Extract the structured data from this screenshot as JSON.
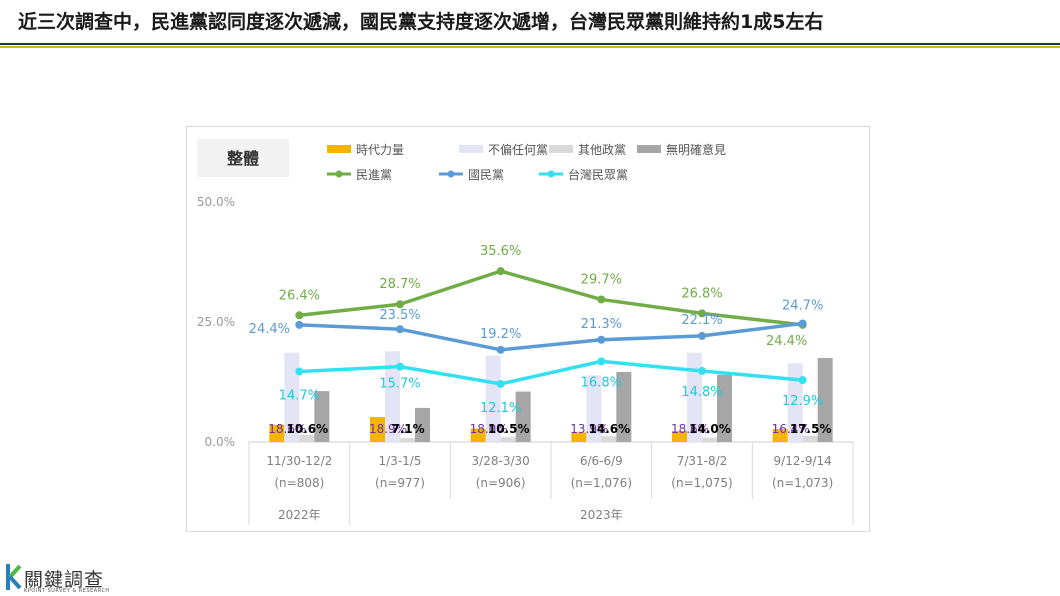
{
  "page": {
    "title": "近三次調查中，民進黨認同度逐次遞減，國民黨支持度逐次遞增，台灣民眾黨則維持約1成5左右"
  },
  "logo": {
    "name": "關鍵調查",
    "subtitle": "KPOINT SURVEY & RESEARCH"
  },
  "colors": {
    "時代力量": "#f5b400",
    "不偏任何黨": "#e4e4f7",
    "其他政黨": "#d9d9d9",
    "無明確意見": "#a6a6a6",
    "民進黨": "#70ad47",
    "國民黨": "#5b9bd5",
    "台灣民眾黨": "#33e0f0"
  },
  "chart_data": {
    "type": "bar+line",
    "panel_label": "整體",
    "categories": [
      "11/30-12/2",
      "1/3-1/5",
      "3/28-3/30",
      "6/6-6/9",
      "7/31-8/2",
      "9/12-9/14"
    ],
    "sample_sizes": [
      "(n=808)",
      "(n=977)",
      "(n=906)",
      "(n=1,076)",
      "(n=1,075)",
      "(n=1,073)"
    ],
    "year_groups": [
      {
        "label": "2022年",
        "span": [
          0,
          0
        ]
      },
      {
        "label": "2023年",
        "span": [
          1,
          5
        ]
      }
    ],
    "y_ticks": [
      "0.0%",
      "25.0%",
      "50.0%"
    ],
    "ylim": [
      0,
      50
    ],
    "bar_series": [
      {
        "name": "時代力量",
        "values": [
          3.6,
          5.2,
          2.8,
          2.0,
          2.3,
          2.7
        ]
      },
      {
        "name": "不偏任何黨",
        "values": [
          18.6,
          18.9,
          18.0,
          13.9,
          18.6,
          16.4
        ],
        "labels": [
          "18.6%",
          "18.9%",
          "18.0%",
          "13.9%",
          "18.6%",
          "16.4%"
        ]
      },
      {
        "name": "其他政黨",
        "values": [
          1.5,
          0.8,
          1.0,
          1.2,
          0.9,
          1.3
        ]
      },
      {
        "name": "無明確意見",
        "values": [
          10.6,
          7.1,
          10.5,
          14.6,
          14.0,
          17.5
        ],
        "labels": [
          "10.6%",
          "7.1%",
          "10.5%",
          "14.6%",
          "14.0%",
          "17.5%"
        ]
      }
    ],
    "line_series": [
      {
        "name": "民進黨",
        "values": [
          26.4,
          28.7,
          35.6,
          29.7,
          26.8,
          24.4
        ],
        "labels": [
          "26.4%",
          "28.7%",
          "35.6%",
          "29.7%",
          "26.8%",
          "24.4%"
        ]
      },
      {
        "name": "國民黨",
        "values": [
          24.4,
          23.5,
          19.2,
          21.3,
          22.1,
          24.7
        ],
        "labels": [
          "24.4%",
          "23.5%",
          "19.2%",
          "21.3%",
          "22.1%",
          "24.7%"
        ]
      },
      {
        "name": "台灣民眾黨",
        "values": [
          14.7,
          15.7,
          12.1,
          16.8,
          14.8,
          12.9
        ],
        "labels": [
          "14.7%",
          "15.7%",
          "12.1%",
          "16.8%",
          "14.8%",
          "12.9%"
        ]
      }
    ],
    "legend": [
      "時代力量",
      "不偏任何黨",
      "其他政黨",
      "無明確意見",
      "民進黨",
      "國民黨",
      "台灣民眾黨"
    ],
    "legend_position": "top"
  }
}
